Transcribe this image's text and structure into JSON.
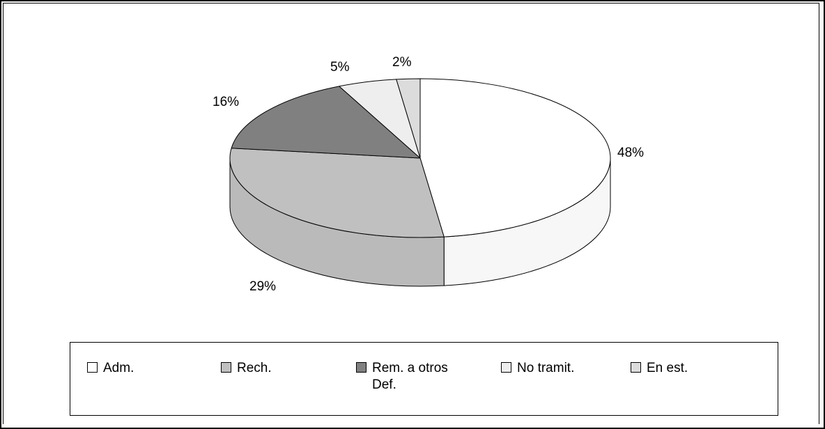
{
  "chart_data": {
    "type": "pie",
    "title": "",
    "three_d": true,
    "categories": [
      "Adm.",
      "Rech.",
      "Rem. a otros Def.",
      "No tramit.",
      "En est."
    ],
    "values": [
      48,
      29,
      16,
      5,
      2
    ],
    "value_labels": [
      "48%",
      "29%",
      "16%",
      "5%",
      "2%"
    ],
    "colors": [
      "#ffffff",
      "#c0c0c0",
      "#808080",
      "#eeeeee",
      "#dcdcdc"
    ],
    "legend_position": "bottom"
  },
  "legend": {
    "items": [
      {
        "label_line1": "Adm.",
        "label_line2": "",
        "color": "#ffffff"
      },
      {
        "label_line1": "Rech.",
        "label_line2": "",
        "color": "#c0c0c0"
      },
      {
        "label_line1": "Rem. a otros",
        "label_line2": "Def.",
        "color": "#808080"
      },
      {
        "label_line1": "No tramit.",
        "label_line2": "",
        "color": "#eeeeee"
      },
      {
        "label_line1": "En est.",
        "label_line2": "",
        "color": "#dcdcdc"
      }
    ]
  }
}
